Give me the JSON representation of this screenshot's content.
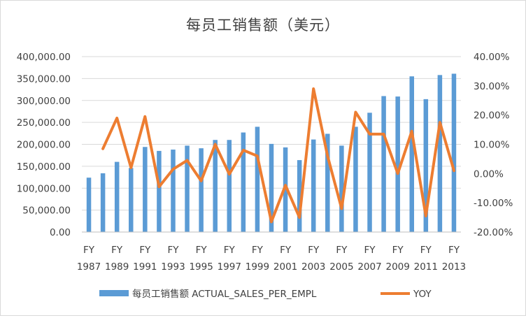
{
  "chart_data": {
    "type": "bar",
    "title": "每员工销售额（美元）",
    "categories": [
      "FY 1987",
      "FY 1988",
      "FY 1989",
      "FY 1990",
      "FY 1991",
      "FY 1992",
      "FY 1993",
      "FY 1994",
      "FY 1995",
      "FY 1996",
      "FY 1997",
      "FY 1998",
      "FY 1999",
      "FY 2000",
      "FY 2001",
      "FY 2002",
      "FY 2003",
      "FY 2004",
      "FY 2005",
      "FY 2006",
      "FY 2007",
      "FY 2008",
      "FY 2009",
      "FY 2010",
      "FY 2011",
      "FY 2012",
      "FY 2013"
    ],
    "x_tick_labels": [
      {
        "line1": "FY",
        "line2": "1987"
      },
      {
        "line1": "FY",
        "line2": "1989"
      },
      {
        "line1": "FY",
        "line2": "1991"
      },
      {
        "line1": "FY",
        "line2": "1993"
      },
      {
        "line1": "FY",
        "line2": "1995"
      },
      {
        "line1": "FY",
        "line2": "1997"
      },
      {
        "line1": "FY",
        "line2": "1999"
      },
      {
        "line1": "FY",
        "line2": "2001"
      },
      {
        "line1": "FY",
        "line2": "2003"
      },
      {
        "line1": "FY",
        "line2": "2005"
      },
      {
        "line1": "FY",
        "line2": "2007"
      },
      {
        "line1": "FY",
        "line2": "2009"
      },
      {
        "line1": "FY",
        "line2": "2011"
      },
      {
        "line1": "FY",
        "line2": "2013"
      }
    ],
    "x_tick_every": 2,
    "series": [
      {
        "name": "每员工销售额 ACTUAL_SALES_PER_EMPL",
        "type": "bar",
        "axis": "left",
        "color": "#5b9bd5",
        "values": [
          124000,
          134000,
          160000,
          146000,
          194000,
          185000,
          188000,
          197000,
          191000,
          210000,
          210000,
          227000,
          240000,
          201000,
          193000,
          164000,
          211000,
          224000,
          197000,
          240000,
          272000,
          310000,
          309000,
          355000,
          303000,
          358000,
          361000
        ]
      },
      {
        "name": "YOY",
        "type": "line",
        "axis": "right",
        "color": "#ed7d31",
        "values": [
          null,
          0.085,
          0.19,
          0.02,
          0.195,
          -0.045,
          0.015,
          0.045,
          -0.025,
          0.1,
          -0.002,
          0.08,
          0.06,
          -0.165,
          -0.04,
          -0.15,
          0.29,
          0.06,
          -0.12,
          0.21,
          0.135,
          0.135,
          0.0,
          0.145,
          -0.145,
          0.175,
          0.01
        ]
      }
    ],
    "y_left": {
      "ylim": [
        0,
        400000
      ],
      "ticks": [
        "0.00",
        "50,000.00",
        "100,000.00",
        "150,000.00",
        "200,000.00",
        "250,000.00",
        "300,000.00",
        "350,000.00",
        "400,000.00"
      ]
    },
    "y_right": {
      "ylim": [
        -0.2,
        0.4
      ],
      "ticks": [
        "-20.00%",
        "-10.00%",
        "0.00%",
        "10.00%",
        "20.00%",
        "30.00%",
        "40.00%"
      ]
    },
    "grid": true,
    "legend": "bottom"
  }
}
